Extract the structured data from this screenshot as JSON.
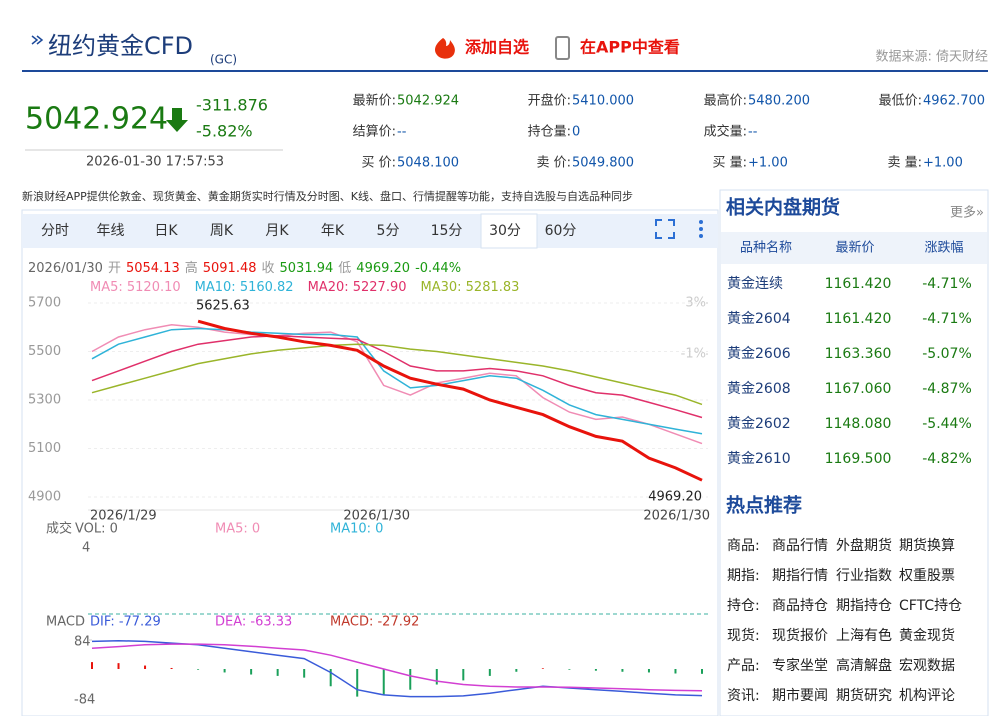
{
  "header": {
    "title": "纽约黄金CFD",
    "code": "(GC)",
    "add": "添加自选",
    "app": "在APP中查看",
    "source": "数据来源: 倚天财经"
  },
  "quote": {
    "price": "5042.924",
    "change": "-311.876",
    "percent": "-5.82%",
    "time": "2026-01-30 17:57:53",
    "fields": [
      [
        [
          "最新价:",
          "5042.924"
        ],
        [
          "开盘价:",
          "5410.000"
        ],
        [
          "最高价:",
          "5480.200"
        ],
        [
          "最低价:",
          "4962.700"
        ]
      ],
      [
        [
          "结算价:",
          "--"
        ],
        [
          "持仓量:",
          "0"
        ],
        [
          "成交量:",
          "--"
        ]
      ],
      [
        [
          "买 价:",
          "5048.100"
        ],
        [
          "卖 价:",
          "5049.800"
        ],
        [
          "买 量:",
          "+1.00"
        ],
        [
          "卖 量:",
          "+1.00"
        ]
      ]
    ]
  },
  "notice": "新浪财经APP提供伦敦金、现货黄金、黄金期货实时行情及分时图、K线、盘口、行情提醒等功能，支持自选股与自选品种同步",
  "tabs": [
    "分时",
    "年线",
    "日K",
    "周K",
    "月K",
    "年K",
    "5分",
    "15分",
    "30分",
    "60分"
  ],
  "chart_data": {
    "type": "line",
    "info": [
      "2026/01/30",
      "开",
      "5054.13",
      "高",
      "5091.48",
      "收",
      "5031.94",
      "低",
      "4969.20",
      "-0.44%"
    ],
    "categories": [
      "2026/1/29",
      null,
      null,
      null,
      null,
      null,
      null,
      null,
      null,
      null,
      null,
      "2026/1/30",
      null,
      null,
      null,
      null,
      null,
      null,
      null,
      null,
      null,
      null,
      null,
      "2026/1/30"
    ],
    "ylim": [
      4900,
      5700
    ],
    "yticks": [
      5700,
      5500,
      5300,
      5100,
      4900
    ],
    "y2lim": [
      -12.2,
      3
    ],
    "y2ticks": [
      {
        "value": 3,
        "label": "3%"
      },
      {
        "value": -1,
        "label": "-1%"
      }
    ],
    "grid": true,
    "annotations": [
      "5625.63",
      "4969.20"
    ],
    "series": [
      {
        "name": "MA5: 5120.10",
        "color": "#f08cb4",
        "values": [
          5500,
          5560,
          5590,
          5610,
          5600,
          5580,
          5570,
          5565,
          5575,
          5580,
          5540,
          5360,
          5320,
          5370,
          5390,
          5410,
          5400,
          5310,
          5250,
          5220,
          5230,
          5200,
          5160,
          5120
        ]
      },
      {
        "name": "MA10: 5160.82",
        "color": "#2fb3d8",
        "values": [
          5470,
          5530,
          5560,
          5590,
          5595,
          5590,
          5580,
          5575,
          5570,
          5570,
          5560,
          5420,
          5350,
          5360,
          5380,
          5400,
          5390,
          5340,
          5280,
          5240,
          5220,
          5200,
          5180,
          5161
        ]
      },
      {
        "name": "MA20: 5227.90",
        "color": "#e0306a",
        "values": [
          5380,
          5420,
          5460,
          5500,
          5530,
          5545,
          5560,
          5565,
          5560,
          5555,
          5550,
          5500,
          5440,
          5420,
          5420,
          5430,
          5420,
          5400,
          5360,
          5330,
          5320,
          5290,
          5260,
          5228
        ]
      },
      {
        "name": "MA30: 5281.83",
        "color": "#9ab52a",
        "values": [
          5330,
          5360,
          5390,
          5420,
          5450,
          5470,
          5490,
          5505,
          5515,
          5525,
          5530,
          5525,
          5510,
          5500,
          5485,
          5470,
          5455,
          5440,
          5420,
          5395,
          5370,
          5345,
          5320,
          5282
        ]
      },
      {
        "color": "#e8130c",
        "values": [
          null,
          null,
          null,
          null,
          5625,
          5595,
          5575,
          5560,
          5540,
          5525,
          5505,
          5440,
          5390,
          5365,
          5345,
          5300,
          5270,
          5240,
          5190,
          5150,
          5130,
          5060,
          5020,
          4969.2
        ]
      }
    ],
    "volume": {
      "title": "成交",
      "labels": [
        "VOL: 0",
        "MA5: 0",
        "MA10: 0"
      ],
      "colors": [
        "#666666",
        "#f08cb4",
        "#2fb3d8"
      ],
      "tick": "4"
    },
    "macd": {
      "title": "MACD",
      "labels": [
        "DIF: -77.29",
        "DEA: -63.33",
        "MACD: -27.92"
      ],
      "colors": [
        "#3a5bd9",
        "#d23fd2",
        "#c0392b"
      ],
      "ylim": [
        -84,
        84
      ],
      "yticks": [
        84,
        {
          "value": -84,
          "label": "-84"
        }
      ],
      "dif": [
        80,
        82,
        80,
        75,
        70,
        60,
        50,
        40,
        30,
        -10,
        -60,
        -75,
        -80,
        -80,
        -78,
        -70,
        -60,
        -50,
        -55,
        -60,
        -65,
        -70,
        -75,
        -77
      ],
      "dea": [
        60,
        65,
        70,
        72,
        72,
        70,
        66,
        60,
        55,
        40,
        20,
        0,
        -20,
        -35,
        -45,
        -50,
        -52,
        -52,
        -53,
        -55,
        -57,
        -60,
        -62,
        -63
      ],
      "histogram": [
        20,
        17,
        10,
        3,
        -2,
        -10,
        -16,
        -20,
        -25,
        -50,
        -80,
        -75,
        -60,
        -45,
        -33,
        -20,
        -8,
        2,
        -2,
        -5,
        -8,
        -10,
        -13,
        -14
      ]
    }
  },
  "related": {
    "title": "相关内盘期货",
    "more": "更多»",
    "header": [
      "品种名称",
      "最新价",
      "涨跌幅"
    ],
    "rows": [
      [
        "黄金连续",
        "1161.420",
        "-4.71%"
      ],
      [
        "黄金2604",
        "1161.420",
        "-4.71%"
      ],
      [
        "黄金2606",
        "1163.360",
        "-5.07%"
      ],
      [
        "黄金2608",
        "1167.060",
        "-4.87%"
      ],
      [
        "黄金2602",
        "1148.080",
        "-5.44%"
      ],
      [
        "黄金2610",
        "1169.500",
        "-4.82%"
      ]
    ]
  },
  "hot": {
    "title": "热点推荐",
    "rows": [
      [
        "商品:",
        "商品行情",
        "外盘期货",
        "期货换算"
      ],
      [
        "期指:",
        "期指行情",
        "行业指数",
        "权重股票"
      ],
      [
        "持仓:",
        "商品持仓",
        "期指持仓",
        "CFTC持仓"
      ],
      [
        "现货:",
        "现货报价",
        "上海有色",
        "黄金现货"
      ],
      [
        "产品:",
        "专家坐堂",
        "高清解盘",
        "宏观数据"
      ],
      [
        "资讯:",
        "期市要闻",
        "期货研究",
        "机构评论"
      ]
    ]
  }
}
